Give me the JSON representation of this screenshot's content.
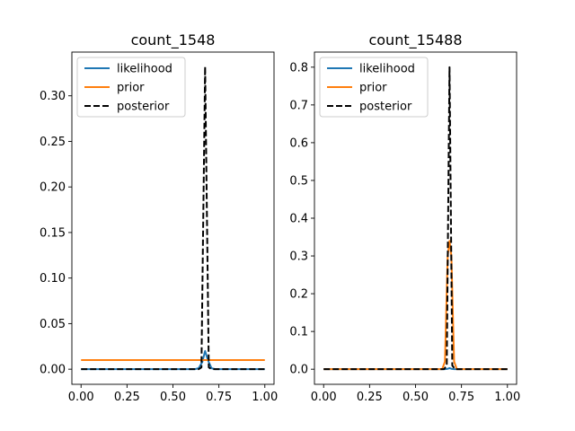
{
  "chart_data": [
    {
      "type": "line",
      "title": "count_1548",
      "xlabel": "",
      "ylabel": "",
      "xlim": [
        -0.05,
        1.05
      ],
      "ylim": [
        -0.0166,
        0.348
      ],
      "xticks": [
        0.0,
        0.25,
        0.5,
        0.75,
        1.0
      ],
      "xtick_labels": [
        "0.00",
        "0.25",
        "0.50",
        "0.75",
        "1.00"
      ],
      "yticks": [
        0.0,
        0.05,
        0.1,
        0.15,
        0.2,
        0.25,
        0.3
      ],
      "ytick_labels": [
        "0.00",
        "0.05",
        "0.10",
        "0.15",
        "0.20",
        "0.25",
        "0.30"
      ],
      "legend": "top-left",
      "series": [
        {
          "name": "likelihood",
          "color": "#1f77b4",
          "dash": "solid",
          "x": [
            0.0,
            0.62,
            0.64,
            0.66,
            0.675,
            0.69,
            0.71,
            0.73,
            1.0
          ],
          "y": [
            0.0,
            0.0,
            0.001,
            0.008,
            0.02,
            0.01,
            0.001,
            0.0,
            0.0
          ]
        },
        {
          "name": "prior",
          "color": "#ff7f0e",
          "dash": "solid",
          "x": [
            0.0,
            1.0
          ],
          "y": [
            0.01,
            0.01
          ]
        },
        {
          "name": "posterior",
          "color": "#000000",
          "dash": "dashed",
          "x": [
            0.0,
            0.64,
            0.655,
            0.675,
            0.695,
            0.71,
            1.0
          ],
          "y": [
            0.0,
            0.0,
            0.002,
            0.332,
            0.002,
            0.0,
            0.0
          ]
        }
      ]
    },
    {
      "type": "line",
      "title": "count_15488",
      "xlabel": "",
      "ylabel": "",
      "xlim": [
        -0.05,
        1.05
      ],
      "ylim": [
        -0.04,
        0.84
      ],
      "xticks": [
        0.0,
        0.25,
        0.5,
        0.75,
        1.0
      ],
      "xtick_labels": [
        "0.00",
        "0.25",
        "0.50",
        "0.75",
        "1.00"
      ],
      "yticks": [
        0.0,
        0.1,
        0.2,
        0.3,
        0.4,
        0.5,
        0.6,
        0.7,
        0.8
      ],
      "ytick_labels": [
        "0.0",
        "0.1",
        "0.2",
        "0.3",
        "0.4",
        "0.5",
        "0.6",
        "0.7",
        "0.8"
      ],
      "legend": "top-left",
      "series": [
        {
          "name": "likelihood",
          "color": "#1f77b4",
          "dash": "solid",
          "x": [
            0.0,
            0.66,
            0.675,
            0.685,
            0.695,
            0.71,
            1.0
          ],
          "y": [
            0.0,
            0.0,
            0.001,
            0.003,
            0.001,
            0.0,
            0.0
          ]
        },
        {
          "name": "prior",
          "color": "#ff7f0e",
          "dash": "solid",
          "x": [
            0.0,
            0.645,
            0.66,
            0.675,
            0.685,
            0.695,
            0.71,
            0.725,
            1.0
          ],
          "y": [
            0.0,
            0.0,
            0.02,
            0.3,
            0.34,
            0.3,
            0.02,
            0.0,
            0.0
          ]
        },
        {
          "name": "posterior",
          "color": "#000000",
          "dash": "dashed",
          "x": [
            0.0,
            0.655,
            0.67,
            0.685,
            0.7,
            0.715,
            1.0
          ],
          "y": [
            0.0,
            0.0,
            0.01,
            0.8,
            0.01,
            0.0,
            0.0
          ]
        }
      ]
    }
  ]
}
